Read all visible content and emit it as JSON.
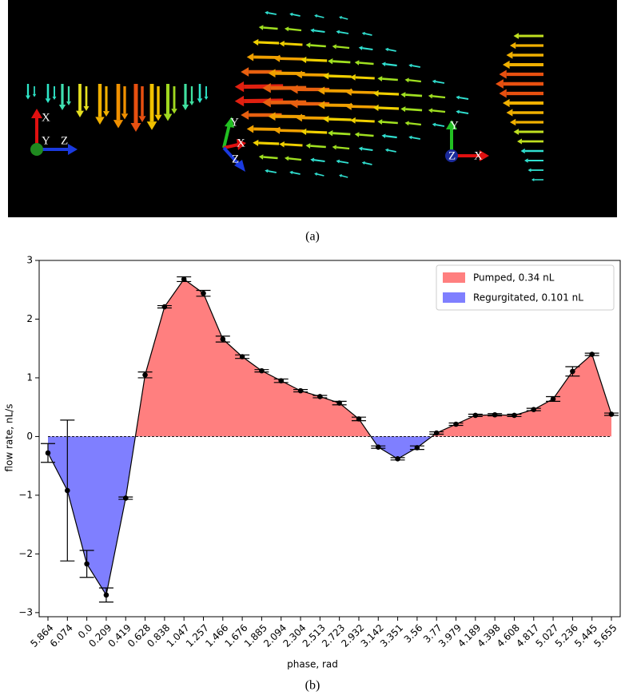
{
  "panel_a": {
    "triads": [
      [
        "X",
        "Y",
        "Z"
      ],
      [
        "Y",
        "X",
        "Z"
      ],
      [
        "Y",
        "Z",
        "X"
      ]
    ]
  },
  "captions": [
    "(a)",
    "(b)"
  ],
  "chart_data": {
    "type": "line",
    "x_label": "phase, rad",
    "y_label": "flow rate, nL/s",
    "categories": [
      "5.864",
      "6.074",
      "0.0",
      "0.209",
      "0.419",
      "0.628",
      "0.838",
      "1.047",
      "1.257",
      "1.466",
      "1.676",
      "1.885",
      "2.094",
      "2.304",
      "2.513",
      "2.723",
      "2.932",
      "3.142",
      "3.351",
      "3.56",
      "3.77",
      "3.979",
      "4.189",
      "4.398",
      "4.608",
      "4.817",
      "5.027",
      "5.236",
      "5.445",
      "5.655"
    ],
    "series": [
      {
        "name": "flow rate",
        "color": "#000000",
        "values": [
          -0.28,
          -0.92,
          -2.17,
          -2.7,
          -1.05,
          1.05,
          2.21,
          2.68,
          2.44,
          1.66,
          1.36,
          1.12,
          0.95,
          0.78,
          0.68,
          0.57,
          0.3,
          -0.18,
          -0.38,
          -0.19,
          0.06,
          0.21,
          0.36,
          0.37,
          0.36,
          0.46,
          0.64,
          1.11,
          1.4,
          0.38
        ],
        "errors": [
          0.16,
          1.2,
          0.23,
          0.12,
          0.02,
          0.05,
          0.02,
          0.04,
          0.05,
          0.05,
          0.03,
          0.02,
          0.03,
          0.02,
          0.02,
          0.03,
          0.03,
          0.02,
          0.02,
          0.03,
          0.02,
          0.02,
          0.02,
          0.02,
          0.02,
          0.02,
          0.04,
          0.08,
          0.02,
          0.02
        ]
      }
    ],
    "fills": [
      {
        "name": "Pumped, 0.34 nL",
        "color": "#ff7f7f",
        "where": "above"
      },
      {
        "name": "Regurgitated, 0.101 nL",
        "color": "#7f7fff",
        "where": "below"
      }
    ],
    "ylim": [
      -3.07,
      3.0
    ],
    "yticks": [
      {
        "value": -3,
        "label": "−3"
      },
      {
        "value": -2,
        "label": "−2"
      },
      {
        "value": -1,
        "label": "−1"
      },
      0,
      1,
      2,
      3
    ],
    "legend": "upper right"
  }
}
